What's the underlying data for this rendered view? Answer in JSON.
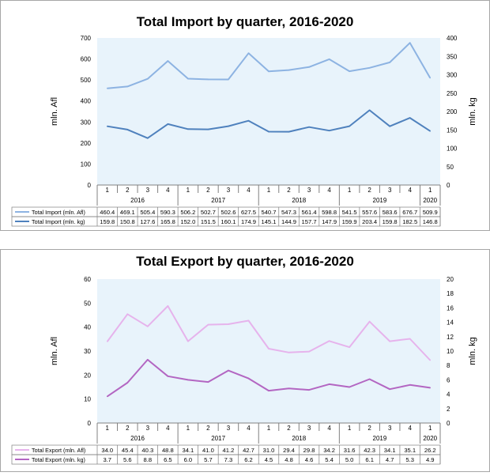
{
  "chart_data": [
    {
      "type": "line",
      "title": "Total Import by quarter, 2016-2020",
      "ylabel": "mln. Afl",
      "y2label": "mln. kg",
      "ylim": [
        0,
        700
      ],
      "yticks": [
        0,
        100,
        200,
        300,
        400,
        500,
        600,
        700
      ],
      "y2lim": [
        0,
        400
      ],
      "y2ticks": [
        0,
        50,
        100,
        150,
        200,
        250,
        300,
        350,
        400
      ],
      "categories": [
        "1",
        "2",
        "3",
        "4",
        "1",
        "2",
        "3",
        "4",
        "1",
        "2",
        "3",
        "4",
        "1",
        "2",
        "3",
        "4",
        "1"
      ],
      "years": [
        "2016",
        "2017",
        "2018",
        "2019",
        "2020"
      ],
      "series": [
        {
          "name": "Total Import (mln. Afl)",
          "axis": "left",
          "color": "#8db3e2",
          "values": [
            460.4,
            469.1,
            505.4,
            590.3,
            506.2,
            502.7,
            502.6,
            627.5,
            540.7,
            547.3,
            561.4,
            598.8,
            541.5,
            557.6,
            583.6,
            676.7,
            509.9
          ]
        },
        {
          "name": "Total Import (mln. kg)",
          "axis": "right",
          "color": "#4f81bd",
          "values": [
            159.8,
            150.8,
            127.6,
            165.8,
            152.0,
            151.5,
            160.1,
            174.9,
            145.1,
            144.9,
            157.7,
            147.9,
            159.9,
            203.4,
            159.8,
            182.5,
            146.8
          ]
        }
      ],
      "legend": "table-below"
    },
    {
      "type": "line",
      "title": "Total Export by quarter, 2016-2020",
      "ylabel": "mln. Afl",
      "y2label": "mln. kg",
      "ylim": [
        0,
        60
      ],
      "yticks": [
        0,
        10,
        20,
        30,
        40,
        50,
        60
      ],
      "y2lim": [
        0,
        20
      ],
      "y2ticks": [
        0,
        2,
        4,
        6,
        8,
        10,
        12,
        14,
        16,
        18,
        20
      ],
      "categories": [
        "1",
        "2",
        "3",
        "4",
        "1",
        "2",
        "3",
        "4",
        "1",
        "2",
        "3",
        "4",
        "1",
        "2",
        "3",
        "4",
        "1"
      ],
      "years": [
        "2016",
        "2017",
        "2018",
        "2019",
        "2020"
      ],
      "series": [
        {
          "name": "Total Export (mln. Afl)",
          "axis": "left",
          "color": "#e6b3ec",
          "values": [
            34.0,
            45.4,
            40.3,
            48.8,
            34.1,
            41.0,
            41.2,
            42.7,
            31.0,
            29.4,
            29.8,
            34.2,
            31.6,
            42.3,
            34.1,
            35.1,
            26.2
          ]
        },
        {
          "name": "Total Export (mln. kg)",
          "axis": "right",
          "color": "#b366c2",
          "values": [
            3.7,
            5.6,
            8.8,
            6.5,
            6.0,
            5.7,
            7.3,
            6.2,
            4.5,
            4.8,
            4.6,
            5.4,
            5.0,
            6.1,
            4.7,
            5.3,
            4.9
          ]
        }
      ],
      "legend": "table-below"
    }
  ],
  "colors": {
    "plot_background": "#e8f3fb",
    "frame": "#a6a6a6"
  }
}
